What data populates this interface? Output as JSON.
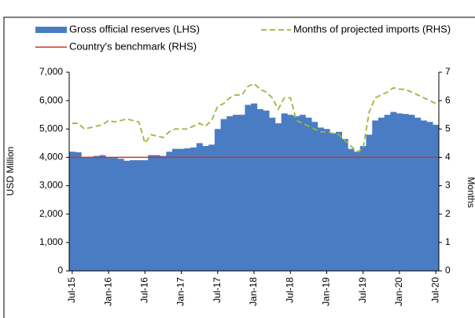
{
  "chart_data": {
    "type": "bar",
    "y_label": "USD Million",
    "y2_label": "Months",
    "categories": [
      "Jul-15",
      null,
      null,
      null,
      null,
      null,
      "Jan-16",
      null,
      null,
      null,
      null,
      null,
      "Jul-16",
      null,
      null,
      null,
      null,
      null,
      "Jan-17",
      null,
      null,
      null,
      null,
      null,
      "Jul-17",
      null,
      null,
      null,
      null,
      null,
      "Jan-18",
      null,
      null,
      null,
      null,
      null,
      "Jul-18",
      null,
      null,
      null,
      null,
      null,
      "Jan-19",
      null,
      null,
      null,
      null,
      null,
      "Jul-19",
      null,
      null,
      null,
      null,
      null,
      "Jan-20",
      null,
      null,
      null,
      null,
      null,
      "Jul-20"
    ],
    "series": [
      {
        "name": "Gross official reserves (LHS)",
        "color": "#4a7cc4",
        "values": [
          4200,
          4180,
          4000,
          4020,
          4050,
          4080,
          4000,
          3980,
          3950,
          3880,
          3900,
          3900,
          3900,
          4080,
          4080,
          4050,
          4200,
          4300,
          4300,
          4320,
          4350,
          4500,
          4400,
          4450,
          5000,
          5350,
          5450,
          5500,
          5500,
          5850,
          5900,
          5700,
          5650,
          5400,
          5200,
          5550,
          5500,
          5450,
          5500,
          5400,
          5250,
          5050,
          5000,
          4850,
          4900,
          4650,
          4300,
          4200,
          4400,
          4800,
          5300,
          5400,
          5500,
          5600,
          5550,
          5530,
          5500,
          5400,
          5300,
          5250,
          5150
        ]
      },
      {
        "name": "Months of projected imports (RHS)",
        "color": "#9ab83a",
        "axis": "y2",
        "values": [
          5.2,
          5.2,
          5.0,
          5.05,
          5.1,
          5.15,
          5.3,
          5.25,
          5.3,
          5.35,
          5.3,
          5.25,
          4.5,
          4.8,
          4.75,
          4.7,
          4.9,
          5.0,
          5.0,
          5.0,
          5.1,
          5.2,
          5.1,
          5.3,
          5.8,
          5.9,
          6.1,
          6.2,
          6.2,
          6.5,
          6.6,
          6.4,
          6.3,
          6.1,
          5.7,
          6.1,
          6.1,
          5.3,
          5.2,
          5.1,
          5.0,
          4.9,
          4.9,
          4.85,
          4.8,
          4.6,
          4.4,
          4.2,
          4.3,
          5.6,
          6.1,
          6.2,
          6.3,
          6.45,
          6.4,
          6.4,
          6.3,
          6.2,
          6.1,
          6.0,
          5.9
        ]
      }
    ],
    "benchmark": {
      "name": "Country's benchmark (RHS)",
      "color": "#c0392b",
      "axis": "y2",
      "value": 4
    },
    "ylim": [
      0,
      7000
    ],
    "yticks": [
      0,
      {
        "value": 1000,
        "label": "1,000"
      },
      {
        "value": 2000,
        "label": "2,000"
      },
      {
        "value": 3000,
        "label": "3,000"
      },
      {
        "value": 4000,
        "label": "4,000"
      },
      {
        "value": 5000,
        "label": "5,000"
      },
      {
        "value": 6000,
        "label": "6,000"
      },
      {
        "value": 7000,
        "label": "7,000"
      }
    ],
    "y2lim": [
      0,
      7
    ],
    "y2ticks": [
      0,
      1,
      2,
      3,
      4,
      5,
      6,
      7
    ]
  }
}
